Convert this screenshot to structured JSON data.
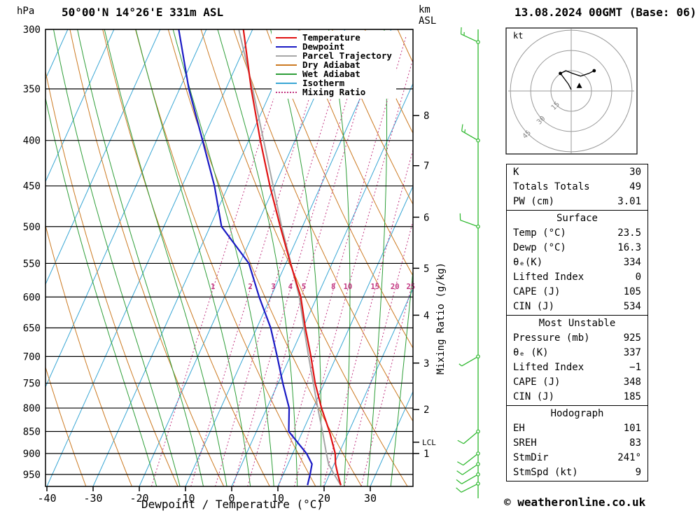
{
  "header": {
    "pressure_unit": "hPa",
    "title": "50°00'N 14°26'E 331m ASL",
    "height_unit_km": "km",
    "height_unit_asl": "ASL",
    "datetime": "13.08.2024 00GMT (Base: 06)"
  },
  "legend": {
    "items": [
      {
        "label": "Temperature",
        "color": "#e01212",
        "style": "solid"
      },
      {
        "label": "Dewpoint",
        "color": "#1a1ac4",
        "style": "solid"
      },
      {
        "label": "Parcel Trajectory",
        "color": "#a6a6a6",
        "style": "solid"
      },
      {
        "label": "Dry Adiabat",
        "color": "#cc7a22",
        "style": "solid"
      },
      {
        "label": "Wet Adiabat",
        "color": "#2e9e38",
        "style": "solid"
      },
      {
        "label": "Isotherm",
        "color": "#38a6d4",
        "style": "solid"
      },
      {
        "label": "Mixing Ratio",
        "color": "#c23580",
        "style": "dotted"
      }
    ]
  },
  "axes": {
    "pressure_ticks": [
      300,
      350,
      400,
      450,
      500,
      550,
      600,
      650,
      700,
      750,
      800,
      850,
      900,
      950
    ],
    "temp_ticks": [
      -40,
      -30,
      -20,
      -10,
      0,
      10,
      20,
      30
    ],
    "xlabel": "Dewpoint / Temperature (°C)",
    "km_ticks": [
      8,
      7,
      6,
      5,
      4,
      3,
      2,
      1
    ],
    "lcl_label": "LCL",
    "mixing_ratio_axis_label": "Mixing Ratio (g/kg)",
    "mixing_ratio_values": [
      1,
      2,
      3,
      4,
      5,
      8,
      10,
      15,
      20,
      25
    ]
  },
  "hodograph": {
    "unit_label": "kt",
    "ring_labels": [
      15,
      30,
      45
    ]
  },
  "chart_data": {
    "type": "skewt_sounding",
    "title": "50°00'N 14°26'E 331m ASL",
    "valid": "13.08.2024 00GMT (Base: 06)",
    "pressure_hpa": [
      977,
      950,
      925,
      900,
      850,
      800,
      750,
      700,
      650,
      600,
      550,
      500,
      450,
      400,
      350,
      300
    ],
    "temperature_c": [
      23.5,
      21.8,
      20.3,
      19.2,
      15.8,
      11.8,
      8.0,
      4.5,
      0.5,
      -3.5,
      -9.0,
      -14.8,
      -21.0,
      -27.5,
      -34.5,
      -42.0
    ],
    "dewpoint_c": [
      16.3,
      15.8,
      15.2,
      13.0,
      7.0,
      4.8,
      1.0,
      -2.8,
      -7.0,
      -12.5,
      -18.0,
      -27.5,
      -33.0,
      -40.0,
      -48.0,
      -56.0
    ],
    "parcel_c": [
      23.5,
      21.0,
      18.8,
      17.3,
      14.3,
      11.0,
      7.6,
      4.0,
      0.2,
      -3.8,
      -8.9,
      -14.5,
      -20.3,
      -26.8,
      -34.2,
      -43.0
    ],
    "lcl_hpa": 874,
    "km_tick_pressures": [
      375,
      427,
      488,
      557,
      629,
      712,
      803,
      900
    ],
    "winds": [
      {
        "p": 310,
        "dir": 295,
        "spd": 15
      },
      {
        "p": 400,
        "dir": 300,
        "spd": 15
      },
      {
        "p": 500,
        "dir": 290,
        "spd": 10
      },
      {
        "p": 700,
        "dir": 240,
        "spd": 5
      },
      {
        "p": 850,
        "dir": 230,
        "spd": 10
      },
      {
        "p": 900,
        "dir": 232,
        "spd": 10
      },
      {
        "p": 925,
        "dir": 236,
        "spd": 10
      },
      {
        "p": 950,
        "dir": 240,
        "spd": 10
      },
      {
        "p": 973,
        "dir": 243,
        "spd": 8
      }
    ],
    "hodograph_trace_kt": [
      [
        0,
        1
      ],
      [
        -2,
        5
      ],
      [
        -5,
        9
      ],
      [
        -8,
        13
      ],
      [
        -4,
        15
      ],
      [
        1,
        13
      ],
      [
        7,
        11
      ],
      [
        13,
        13
      ],
      [
        17,
        15
      ]
    ],
    "storm_motion_kt": [
      6,
      4
    ]
  },
  "tables": {
    "indices": {
      "rows": [
        {
          "label": "K",
          "value": "30"
        },
        {
          "label": "Totals Totals",
          "value": "49"
        },
        {
          "label": "PW (cm)",
          "value": "3.01"
        }
      ]
    },
    "surface": {
      "title": "Surface",
      "rows": [
        {
          "label": "Temp (°C)",
          "value": "23.5"
        },
        {
          "label": "Dewp (°C)",
          "value": "16.3"
        },
        {
          "label": "θₑ(K)",
          "value": "334"
        },
        {
          "label": "Lifted Index",
          "value": "0"
        },
        {
          "label": "CAPE (J)",
          "value": "105"
        },
        {
          "label": "CIN (J)",
          "value": "534"
        }
      ]
    },
    "most_unstable": {
      "title": "Most Unstable",
      "rows": [
        {
          "label": "Pressure (mb)",
          "value": "925"
        },
        {
          "label": "θₑ (K)",
          "value": "337"
        },
        {
          "label": "Lifted Index",
          "value": "−1"
        },
        {
          "label": "CAPE (J)",
          "value": "348"
        },
        {
          "label": "CIN (J)",
          "value": "185"
        }
      ]
    },
    "hodograph_stats": {
      "title": "Hodograph",
      "rows": [
        {
          "label": "EH",
          "value": "101"
        },
        {
          "label": "SREH",
          "value": "83"
        },
        {
          "label": "StmDir",
          "value": "241°"
        },
        {
          "label": "StmSpd (kt)",
          "value": "9"
        }
      ]
    }
  },
  "footer": {
    "copyright": "© weatheronline.co.uk"
  }
}
